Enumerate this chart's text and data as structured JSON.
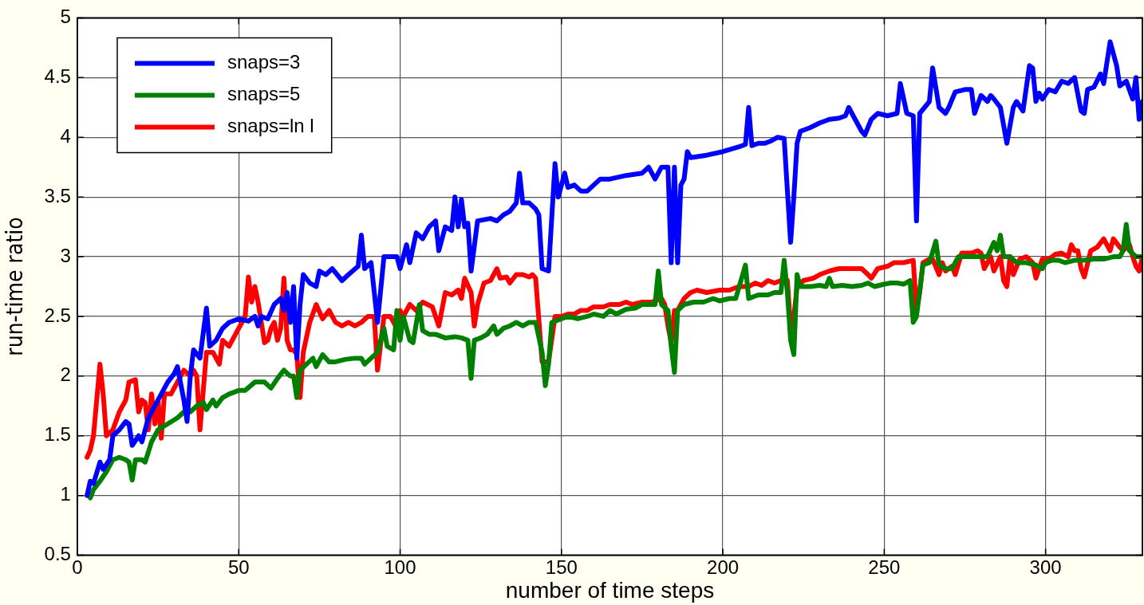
{
  "chart_data": {
    "type": "line",
    "xlabel": "number of time steps",
    "ylabel": "run-time ratio",
    "xlim": [
      0,
      330
    ],
    "xticks": [
      0,
      50,
      100,
      150,
      200,
      250,
      300
    ],
    "ylim": [
      0.5,
      5
    ],
    "yticks": [
      0.5,
      1,
      1.5,
      2,
      2.5,
      3,
      3.5,
      4,
      4.5,
      5
    ],
    "grid": true,
    "legend": "top left",
    "line_style": "solid",
    "marker": "none",
    "series": [
      {
        "name": "snaps=3",
        "color": "#0000ff",
        "x": [
          3,
          4,
          5,
          7,
          8,
          10,
          11,
          13,
          15,
          16,
          17,
          19,
          20,
          22,
          24,
          26,
          28,
          30,
          31,
          33,
          34,
          35,
          36,
          38,
          40,
          41,
          43,
          45,
          47,
          50,
          53,
          55,
          56,
          57,
          59,
          61,
          63,
          64,
          65,
          66,
          67,
          68,
          69,
          70,
          72,
          74,
          75,
          77,
          79,
          82,
          84,
          87,
          88,
          89,
          91,
          93,
          95,
          99,
          100,
          102,
          103,
          105,
          107,
          109,
          111,
          112,
          114,
          116,
          117,
          118,
          119,
          120,
          121,
          122,
          124,
          128,
          130,
          132,
          134,
          136,
          137,
          138,
          140,
          142,
          143,
          144,
          146,
          148,
          149,
          151,
          152,
          154,
          156,
          158,
          160,
          162,
          165,
          170,
          175,
          177,
          179,
          181,
          183,
          184,
          185,
          186,
          187,
          188,
          189,
          190,
          195,
          200,
          205,
          207,
          208,
          209,
          211,
          213,
          215,
          217,
          219,
          221,
          222,
          223,
          224,
          227,
          230,
          233,
          236,
          238,
          239,
          241,
          243,
          244,
          246,
          248,
          251,
          254,
          255,
          257,
          259,
          260,
          261,
          264,
          265,
          267,
          269,
          270,
          272,
          275,
          277,
          278,
          280,
          282,
          283,
          284,
          286,
          288,
          290,
          291,
          293,
          295,
          296,
          297,
          298,
          299,
          301,
          303,
          305,
          307,
          309,
          311,
          312,
          313,
          315,
          317,
          318,
          320,
          322,
          323,
          325,
          327,
          328,
          329,
          330
        ],
        "values": [
          1.0,
          1.12,
          1.1,
          1.28,
          1.22,
          1.3,
          1.5,
          1.55,
          1.62,
          1.6,
          1.42,
          1.5,
          1.45,
          1.65,
          1.75,
          1.85,
          1.95,
          2.02,
          2.08,
          1.8,
          1.62,
          2.0,
          2.22,
          2.15,
          2.57,
          2.25,
          2.3,
          2.4,
          2.45,
          2.48,
          2.46,
          2.5,
          2.42,
          2.5,
          2.48,
          2.6,
          2.65,
          2.55,
          2.7,
          2.45,
          2.75,
          2.15,
          2.6,
          2.85,
          2.78,
          2.75,
          2.88,
          2.85,
          2.9,
          2.8,
          2.85,
          2.92,
          3.18,
          2.9,
          2.95,
          2.45,
          3.0,
          3.0,
          2.9,
          3.1,
          2.95,
          3.2,
          3.15,
          3.25,
          3.3,
          3.05,
          3.25,
          3.22,
          3.5,
          3.25,
          3.48,
          3.25,
          3.28,
          2.88,
          3.3,
          3.32,
          3.3,
          3.35,
          3.38,
          3.45,
          3.7,
          3.45,
          3.45,
          3.4,
          3.35,
          2.9,
          2.88,
          3.78,
          3.5,
          3.7,
          3.58,
          3.6,
          3.55,
          3.55,
          3.6,
          3.65,
          3.65,
          3.68,
          3.7,
          3.75,
          3.65,
          3.75,
          3.75,
          2.95,
          3.75,
          2.95,
          3.6,
          3.65,
          3.88,
          3.83,
          3.85,
          3.88,
          3.92,
          3.94,
          4.25,
          3.93,
          3.95,
          3.95,
          3.97,
          4.0,
          3.99,
          3.12,
          3.5,
          3.95,
          4.05,
          4.08,
          4.12,
          4.15,
          4.16,
          4.18,
          4.25,
          4.15,
          4.05,
          4.02,
          4.15,
          4.2,
          4.18,
          4.2,
          4.45,
          4.2,
          4.18,
          3.3,
          4.2,
          4.3,
          4.58,
          4.25,
          4.2,
          4.25,
          4.38,
          4.4,
          4.4,
          4.2,
          4.35,
          4.3,
          4.35,
          4.32,
          4.25,
          3.95,
          4.25,
          4.3,
          4.22,
          4.6,
          4.58,
          4.3,
          4.37,
          4.32,
          4.4,
          4.38,
          4.47,
          4.45,
          4.5,
          4.22,
          4.2,
          4.4,
          4.42,
          4.53,
          4.45,
          4.8,
          4.6,
          4.43,
          4.47,
          4.32,
          4.5,
          4.15,
          4.3
        ]
      },
      {
        "name": "snaps=5",
        "color": "#008000",
        "x": [
          4,
          5,
          7,
          9,
          11,
          13,
          15,
          16,
          17,
          18,
          20,
          21,
          23,
          25,
          28,
          31,
          33,
          35,
          37,
          39,
          40,
          42,
          43,
          45,
          47,
          50,
          52,
          55,
          58,
          60,
          62,
          64,
          66,
          67,
          68,
          69,
          71,
          73,
          74,
          76,
          78,
          80,
          83,
          86,
          88,
          89,
          91,
          93,
          95,
          96,
          98,
          99,
          100,
          101,
          103,
          104,
          106,
          107,
          109,
          111,
          114,
          117,
          119,
          121,
          122,
          123,
          125,
          127,
          129,
          130,
          132,
          134,
          136,
          138,
          140,
          142,
          144,
          145,
          146,
          147,
          149,
          152,
          155,
          158,
          160,
          163,
          165,
          167,
          170,
          173,
          175,
          177,
          179,
          180,
          181,
          183,
          184,
          185,
          186,
          188,
          191,
          194,
          197,
          199,
          202,
          204,
          207,
          208,
          211,
          214,
          216,
          218,
          219,
          220,
          221,
          222,
          223,
          224,
          227,
          230,
          232,
          233,
          234,
          237,
          240,
          243,
          245,
          247,
          250,
          252,
          254,
          256,
          258,
          259,
          260,
          262,
          264,
          266,
          267,
          269,
          271,
          273,
          276,
          280,
          282,
          284,
          285,
          286,
          287,
          289,
          291,
          294,
          297,
          299,
          300,
          302,
          304,
          306,
          309,
          312,
          315,
          318,
          321,
          323,
          324,
          325,
          326,
          328,
          330
        ],
        "values": [
          0.98,
          1.05,
          1.12,
          1.2,
          1.3,
          1.32,
          1.3,
          1.28,
          1.13,
          1.3,
          1.3,
          1.28,
          1.45,
          1.55,
          1.6,
          1.65,
          1.7,
          1.7,
          1.75,
          1.78,
          1.72,
          1.8,
          1.75,
          1.82,
          1.85,
          1.88,
          1.88,
          1.95,
          1.95,
          1.9,
          1.98,
          2.05,
          2.0,
          2.0,
          1.82,
          2.05,
          2.1,
          2.15,
          2.08,
          2.18,
          2.12,
          2.12,
          2.14,
          2.15,
          2.15,
          2.1,
          2.15,
          2.2,
          2.4,
          2.25,
          2.22,
          2.55,
          2.3,
          2.5,
          2.3,
          2.28,
          2.6,
          2.38,
          2.35,
          2.35,
          2.32,
          2.33,
          2.32,
          2.3,
          1.98,
          2.3,
          2.32,
          2.35,
          2.42,
          2.35,
          2.4,
          2.42,
          2.45,
          2.42,
          2.45,
          2.45,
          2.2,
          1.92,
          2.1,
          2.45,
          2.47,
          2.5,
          2.48,
          2.5,
          2.52,
          2.5,
          2.55,
          2.52,
          2.56,
          2.57,
          2.6,
          2.6,
          2.6,
          2.88,
          2.6,
          2.55,
          2.25,
          2.03,
          2.55,
          2.6,
          2.62,
          2.62,
          2.65,
          2.63,
          2.65,
          2.65,
          2.93,
          2.65,
          2.68,
          2.68,
          2.7,
          2.7,
          2.97,
          2.7,
          2.3,
          2.18,
          2.85,
          2.75,
          2.75,
          2.76,
          2.75,
          2.82,
          2.75,
          2.76,
          2.75,
          2.76,
          2.78,
          2.75,
          2.77,
          2.78,
          2.78,
          2.77,
          2.8,
          2.45,
          2.5,
          2.93,
          2.95,
          3.13,
          2.93,
          2.9,
          2.9,
          3.0,
          3.0,
          3.0,
          3.0,
          3.12,
          3.05,
          3.18,
          3.0,
          3.0,
          2.95,
          2.95,
          2.93,
          2.9,
          2.95,
          2.97,
          2.97,
          2.95,
          2.97,
          2.97,
          2.98,
          2.98,
          3.0,
          3.0,
          3.05,
          3.27,
          3.05,
          3.0,
          3.0
        ]
      },
      {
        "name": "snaps=ln l",
        "color": "#ff0000",
        "x": [
          3,
          4,
          5,
          6,
          7,
          8,
          9,
          11,
          13,
          15,
          16,
          18,
          19,
          20,
          21,
          22,
          23,
          24,
          25,
          26,
          27,
          29,
          31,
          33,
          35,
          36,
          37,
          38,
          40,
          42,
          44,
          45,
          47,
          49,
          50,
          52,
          53,
          54,
          55,
          56,
          58,
          59,
          60,
          61,
          62,
          63,
          64,
          65,
          66,
          67,
          68,
          69,
          70,
          72,
          74,
          76,
          78,
          80,
          82,
          84,
          86,
          88,
          90,
          92,
          93,
          95,
          97,
          99,
          100,
          101,
          103,
          105,
          107,
          110,
          112,
          114,
          116,
          118,
          119,
          120,
          122,
          123,
          124,
          126,
          128,
          130,
          131,
          133,
          134,
          136,
          138,
          140,
          141,
          142,
          144,
          146,
          148,
          150,
          152,
          154,
          156,
          158,
          160,
          163,
          165,
          168,
          170,
          172,
          175,
          178,
          181,
          182,
          183,
          184,
          185,
          186,
          188,
          190,
          192,
          195,
          199,
          202,
          205,
          208,
          210,
          212,
          214,
          216,
          218,
          220,
          221,
          222,
          223,
          225,
          228,
          230,
          233,
          236,
          240,
          243,
          245,
          246,
          248,
          251,
          253,
          256,
          259,
          260,
          261,
          262,
          264,
          265,
          267,
          268,
          269,
          271,
          272,
          274,
          277,
          279,
          280,
          281,
          283,
          284,
          286,
          287,
          288,
          289,
          290,
          292,
          294,
          296,
          297,
          299,
          301,
          303,
          305,
          307,
          308,
          309,
          310,
          311,
          312,
          314,
          316,
          318,
          320,
          321,
          323,
          324,
          326,
          327,
          328,
          329,
          330
        ],
        "values": [
          1.32,
          1.38,
          1.5,
          1.8,
          2.1,
          1.85,
          1.5,
          1.55,
          1.7,
          1.8,
          1.95,
          1.97,
          1.7,
          1.8,
          1.78,
          1.55,
          1.85,
          1.6,
          1.8,
          1.48,
          1.85,
          1.85,
          1.95,
          2.05,
          2.0,
          2.05,
          2.0,
          1.55,
          2.2,
          2.2,
          2.1,
          2.3,
          2.25,
          2.35,
          2.4,
          2.5,
          2.83,
          2.62,
          2.75,
          2.62,
          2.28,
          2.3,
          2.4,
          2.45,
          2.3,
          2.4,
          2.82,
          2.3,
          2.22,
          2.22,
          2.18,
          1.82,
          2.2,
          2.45,
          2.6,
          2.48,
          2.55,
          2.45,
          2.42,
          2.45,
          2.42,
          2.45,
          2.5,
          2.5,
          2.05,
          2.5,
          2.5,
          2.4,
          2.55,
          2.5,
          2.6,
          2.55,
          2.62,
          2.58,
          2.42,
          2.7,
          2.68,
          2.72,
          2.65,
          2.82,
          2.7,
          2.42,
          2.6,
          2.78,
          2.8,
          2.9,
          2.82,
          2.83,
          2.78,
          2.85,
          2.85,
          2.83,
          2.85,
          2.82,
          2.12,
          2.12,
          2.5,
          2.5,
          2.52,
          2.52,
          2.55,
          2.55,
          2.58,
          2.58,
          2.6,
          2.6,
          2.62,
          2.6,
          2.62,
          2.62,
          2.65,
          2.6,
          2.42,
          2.28,
          2.55,
          2.55,
          2.65,
          2.7,
          2.72,
          2.7,
          2.72,
          2.72,
          2.75,
          2.75,
          2.78,
          2.76,
          2.8,
          2.78,
          2.8,
          2.8,
          2.4,
          2.5,
          2.75,
          2.8,
          2.82,
          2.85,
          2.88,
          2.9,
          2.9,
          2.9,
          2.85,
          2.82,
          2.9,
          2.92,
          2.95,
          2.95,
          2.97,
          2.55,
          2.7,
          2.95,
          2.98,
          2.98,
          2.85,
          2.95,
          2.88,
          2.92,
          2.85,
          3.03,
          3.03,
          3.05,
          3.03,
          2.9,
          3.0,
          2.88,
          3.0,
          2.8,
          2.75,
          3.0,
          2.85,
          2.98,
          3.0,
          2.95,
          2.82,
          2.98,
          2.98,
          3.02,
          3.03,
          3.0,
          3.1,
          3.05,
          3.05,
          2.9,
          2.83,
          3.05,
          3.08,
          3.15,
          3.05,
          3.15,
          3.08,
          3.05,
          3.1,
          3.0,
          2.92,
          2.88,
          3.0
        ]
      }
    ]
  }
}
